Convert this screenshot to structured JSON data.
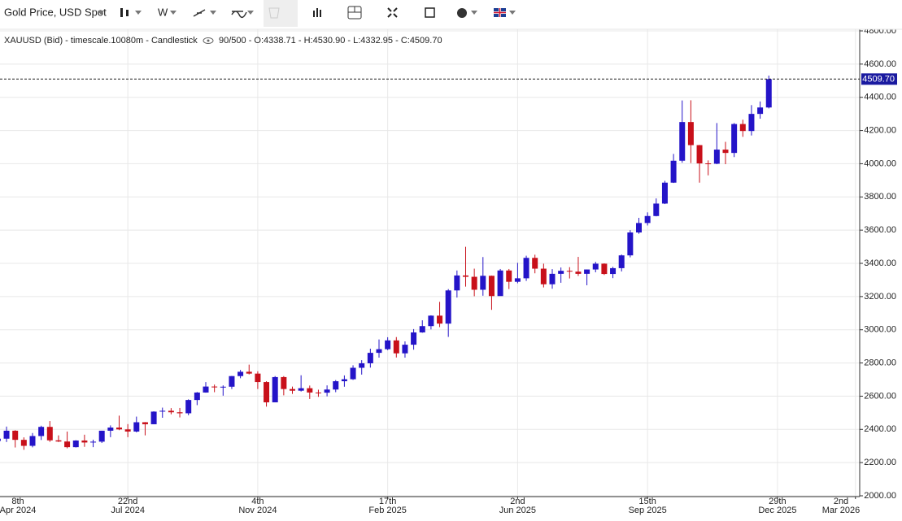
{
  "toolbar": {
    "instrument": "Gold Price, USD Spot",
    "timeframe": "W"
  },
  "chart_data": {
    "type": "candlestick",
    "info": {
      "series": "XAUUSD (Bid) - timescale.10080m - Candlestick",
      "stats": "90/500 - O:4338.71 - H:4530.90 - L:4332.95 - C:4509.70"
    },
    "categories": [
      "8th\nApr 2024",
      null,
      null,
      null,
      null,
      null,
      null,
      null,
      null,
      null,
      null,
      null,
      null,
      null,
      null,
      "22nd\nJul 2024",
      null,
      null,
      null,
      null,
      null,
      null,
      null,
      null,
      null,
      null,
      null,
      null,
      null,
      null,
      "4th\nNov 2024",
      null,
      null,
      null,
      null,
      null,
      null,
      null,
      null,
      null,
      null,
      null,
      null,
      null,
      null,
      "17th\nFeb 2025",
      null,
      null,
      null,
      null,
      null,
      null,
      null,
      null,
      null,
      null,
      null,
      null,
      null,
      null,
      "2nd\nJun 2025",
      null,
      null,
      null,
      null,
      null,
      null,
      null,
      null,
      null,
      null,
      null,
      null,
      null,
      null,
      "15th\nSep 2025",
      null,
      null,
      null,
      null,
      null,
      null,
      null,
      null,
      null,
      null,
      null,
      null,
      null,
      null,
      "29th\nDec 2025",
      null,
      null,
      null,
      null,
      null,
      null,
      null,
      null,
      "2nd\nMar 2026"
    ],
    "open": [
      2330,
      2344,
      2392,
      2337,
      2301,
      2360,
      2415,
      2334,
      2327,
      2293,
      2333,
      2321,
      2326,
      2392,
      2411,
      2400,
      2387,
      2443,
      2431,
      2507,
      2512,
      2503,
      2497,
      2577,
      2622,
      2658,
      2653,
      2657,
      2721,
      2747,
      2736,
      2685,
      2563,
      2715,
      2643,
      2633,
      2648,
      2622,
      2621,
      2640,
      2690,
      2702,
      2771,
      2798,
      2861,
      2883,
      2936,
      2858,
      2910,
      2984,
      3022,
      3085,
      3037,
      3237,
      3327,
      3319,
      3241,
      3325,
      3203,
      3357,
      3289,
      3310,
      3433,
      3368,
      3274,
      3337,
      3355,
      3350,
      3337,
      3363,
      3398,
      3336,
      3371,
      3448,
      3586,
      3643,
      3685,
      3760,
      3886,
      4018,
      4251,
      4112,
      4002,
      4000,
      4085,
      4065,
      4239,
      4197,
      4300,
      4338.71,
      null,
      null,
      null,
      null,
      null,
      null,
      null,
      null,
      null,
      null
    ],
    "high": [
      2431,
      2417,
      2395,
      2352,
      2378,
      2422,
      2450,
      2364,
      2387,
      2335,
      2368,
      2338,
      2392,
      2424,
      2483,
      2432,
      2477,
      2444,
      2509,
      2531,
      2528,
      2529,
      2581,
      2625,
      2685,
      2670,
      2665,
      2722,
      2758,
      2790,
      2750,
      2690,
      2721,
      2721,
      2658,
      2726,
      2664,
      2639,
      2665,
      2697,
      2725,
      2786,
      2817,
      2886,
      2942,
      2955,
      2956,
      2930,
      3004,
      3057,
      3087,
      3168,
      3245,
      3357,
      3500,
      3368,
      3438,
      3326,
      3366,
      3366,
      3403,
      3446,
      3452,
      3398,
      3365,
      3375,
      3377,
      3439,
      3363,
      3409,
      3400,
      3379,
      3453,
      3600,
      3674,
      3707,
      3791,
      3897,
      4059,
      4381,
      4382,
      4113,
      4020,
      4245,
      4132,
      4245,
      4265,
      4353,
      4375,
      4530.9,
      null,
      null,
      null,
      null,
      null,
      null,
      null,
      null,
      null,
      null
    ],
    "low": [
      2326,
      2324,
      2291,
      2277,
      2292,
      2336,
      2325,
      2324,
      2286,
      2291,
      2295,
      2293,
      2318,
      2353,
      2395,
      2353,
      2382,
      2364,
      2431,
      2470,
      2491,
      2472,
      2485,
      2546,
      2621,
      2624,
      2603,
      2643,
      2708,
      2731,
      2643,
      2537,
      2563,
      2605,
      2614,
      2628,
      2583,
      2596,
      2599,
      2624,
      2657,
      2698,
      2730,
      2772,
      2832,
      2877,
      2833,
      2832,
      2880,
      2982,
      3002,
      3016,
      2957,
      3194,
      3260,
      3202,
      3205,
      3120,
      3204,
      3245,
      3280,
      3294,
      3340,
      3255,
      3247,
      3283,
      3309,
      3324,
      3268,
      3346,
      3330,
      3311,
      3351,
      3436,
      3578,
      3628,
      3683,
      3757,
      3884,
      4006,
      4004,
      3886,
      3930,
      3997,
      3997,
      4040,
      4162,
      4170,
      4271,
      4332.95,
      null,
      null,
      null,
      null,
      null,
      null,
      null,
      null,
      null,
      null
    ],
    "close": [
      2344,
      2392,
      2337,
      2301,
      2360,
      2415,
      2334,
      2327,
      2293,
      2333,
      2321,
      2326,
      2392,
      2411,
      2400,
      2387,
      2443,
      2431,
      2507,
      2512,
      2503,
      2497,
      2577,
      2622,
      2658,
      2653,
      2657,
      2721,
      2747,
      2736,
      2685,
      2563,
      2715,
      2643,
      2633,
      2648,
      2622,
      2621,
      2640,
      2690,
      2702,
      2771,
      2798,
      2861,
      2883,
      2936,
      2858,
      2910,
      2984,
      3022,
      3085,
      3037,
      3237,
      3327,
      3319,
      3241,
      3325,
      3203,
      3357,
      3289,
      3310,
      3433,
      3368,
      3274,
      3337,
      3355,
      3350,
      3337,
      3363,
      3398,
      3336,
      3371,
      3448,
      3586,
      3643,
      3685,
      3760,
      3886,
      4018,
      4251,
      4112,
      4002,
      4000,
      4085,
      4065,
      4239,
      4197,
      4300,
      4338.71,
      4509.7,
      null,
      null,
      null,
      null,
      null,
      null,
      null,
      null,
      null,
      null
    ],
    "last_label": "4509.70",
    "up_color": "#2414c8",
    "down_color": "#c8101a",
    "ylim": [
      2000,
      4800
    ],
    "yticks": [
      {
        "value": 2000,
        "label": "2000.00"
      },
      {
        "value": 2200,
        "label": "2200.00"
      },
      {
        "value": 2400,
        "label": "2400.00"
      },
      {
        "value": 2600,
        "label": "2600.00"
      },
      {
        "value": 2800,
        "label": "2800.00"
      },
      {
        "value": 3000,
        "label": "3000.00"
      },
      {
        "value": 3200,
        "label": "3200.00"
      },
      {
        "value": 3400,
        "label": "3400.00"
      },
      {
        "value": 3600,
        "label": "3600.00"
      },
      {
        "value": 3800,
        "label": "3800.00"
      },
      {
        "value": 4000,
        "label": "4000.00"
      },
      {
        "value": 4200,
        "label": "4200.00"
      },
      {
        "value": 4400,
        "label": "4400.00"
      },
      {
        "value": 4600,
        "label": "4600.00"
      },
      {
        "value": 4800,
        "label": "4800.00"
      }
    ],
    "grid": true
  }
}
